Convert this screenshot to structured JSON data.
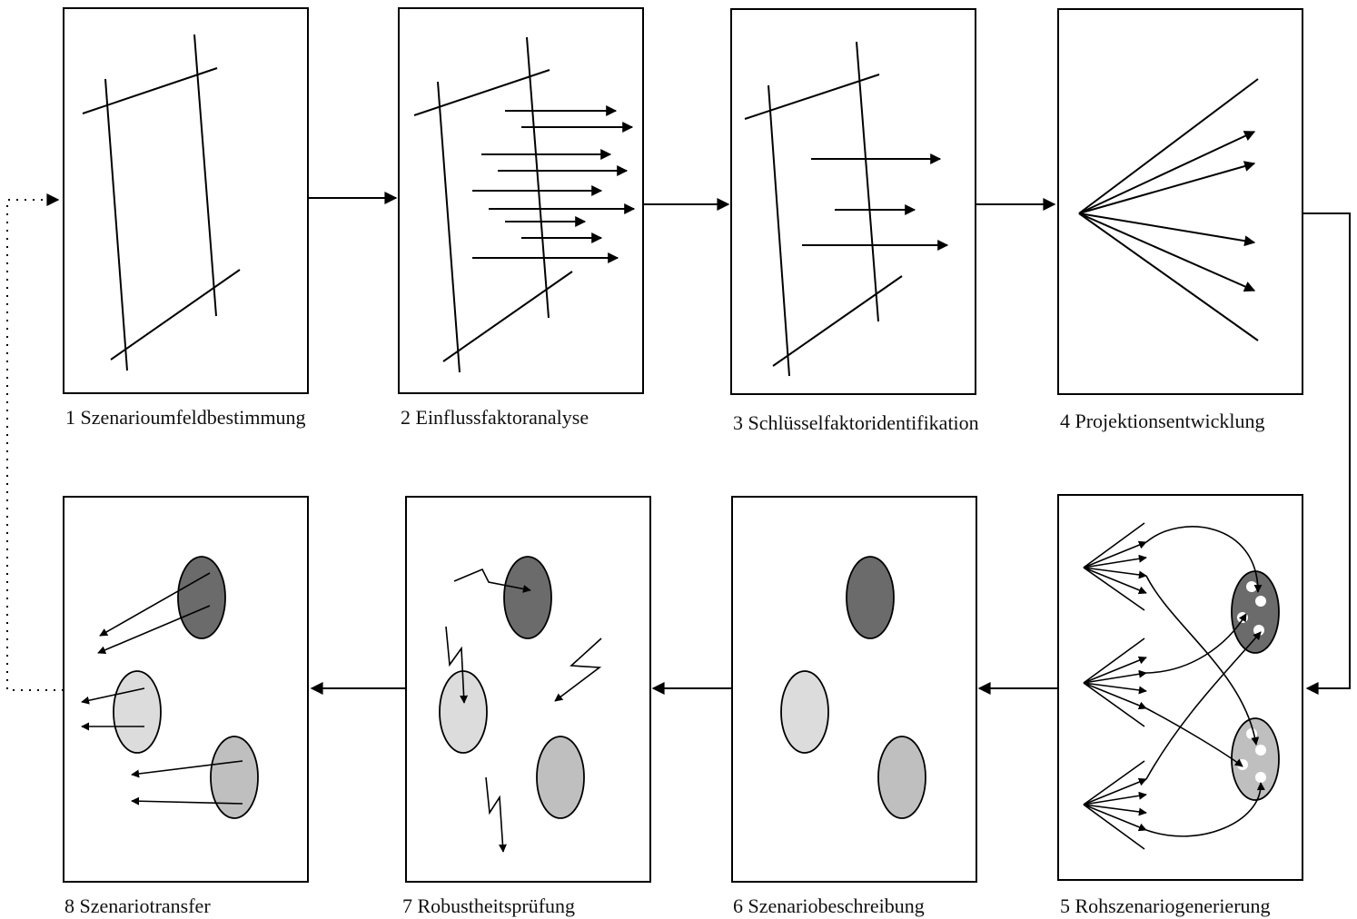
{
  "steps": [
    {
      "label": "1 Szenarioumfeldbestimmung"
    },
    {
      "label": "2 Einflussfaktoranalyse"
    },
    {
      "label": "3 Schlüsselfaktoridentifikation"
    },
    {
      "label": "4 Projektionsentwicklung"
    },
    {
      "label": "5 Rohszenariogenerierung"
    },
    {
      "label": "6 Szenariobeschreibung"
    },
    {
      "label": "7 Robustheitsprüfung"
    },
    {
      "label": "8 Szenariotransfer"
    }
  ],
  "colors": {
    "stroke": "#000000",
    "scenario_dark": "#6b6b6b",
    "scenario_light": "#dcdcdc",
    "scenario_mid": "#bfbfbf",
    "background": "#ffffff"
  }
}
